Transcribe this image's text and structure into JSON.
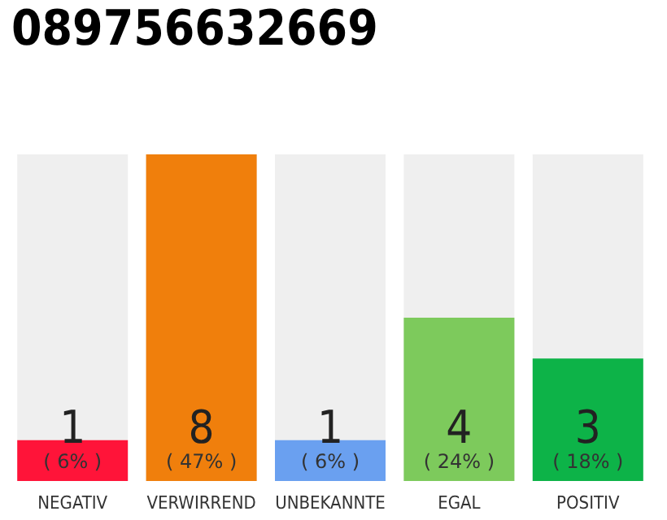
{
  "chart_data": {
    "type": "bar",
    "title": "089756632669",
    "categories": [
      "NEGATIV",
      "VERWIRREND",
      "UNBEKANNTE",
      "EGAL",
      "POSITIV"
    ],
    "values": [
      1,
      8,
      1,
      4,
      3
    ],
    "colors": [
      "#ff1439",
      "#f07f0c",
      "#6aa0f0",
      "#7dca5c",
      "#0db348"
    ],
    "data_labels": true,
    "annotations": [
      "( 6% )",
      "( 47% )",
      "( 6% )",
      "( 24% )",
      "( 18% )"
    ]
  }
}
